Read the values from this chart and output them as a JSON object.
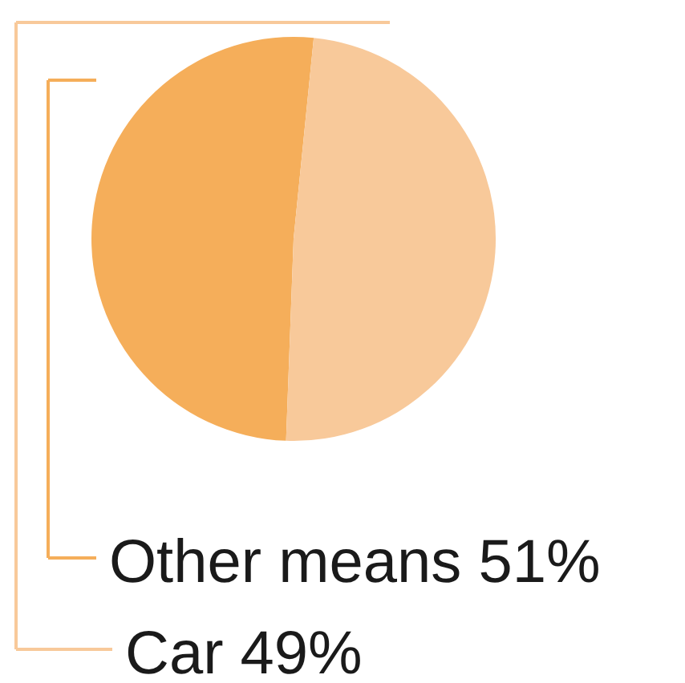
{
  "chart_data": {
    "type": "pie",
    "categories": [
      "Other means",
      "Car"
    ],
    "values": [
      51,
      49
    ],
    "colors": [
      "#f5ae5a",
      "#f8c99a"
    ],
    "value_labels": [
      "51%",
      "49%"
    ],
    "legend": "bottom"
  }
}
